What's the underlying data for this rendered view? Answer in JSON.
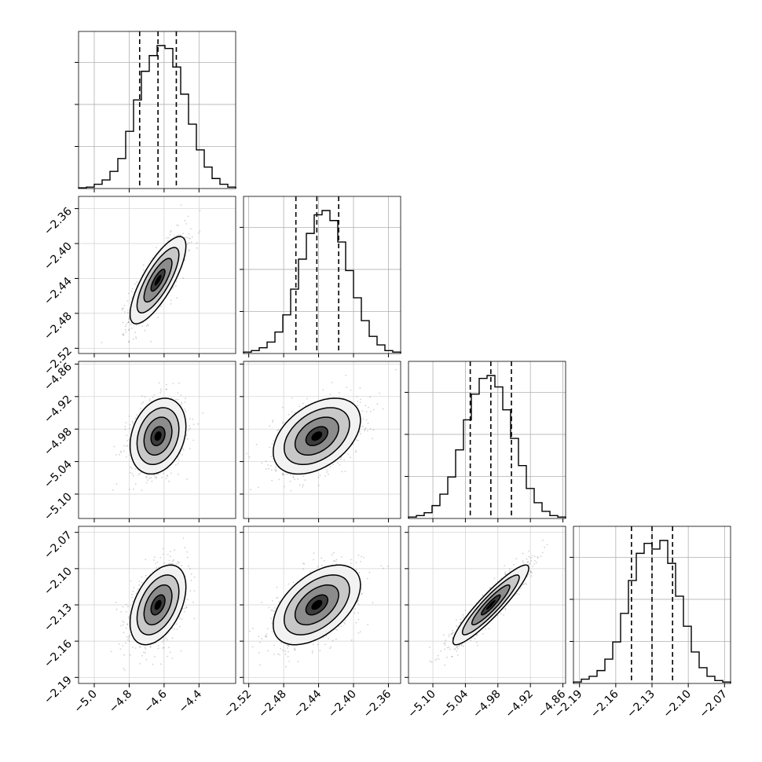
{
  "chart_data": {
    "type": "corner",
    "description_note": "",
    "parameters": [
      {
        "ticks": [
          -5.0,
          -4.8,
          -4.6,
          -4.4
        ],
        "tick_labels": [
          "−5.0",
          "−4.8",
          "−4.6",
          "−4.4"
        ],
        "range": [
          -5.09,
          -4.19
        ]
      },
      {
        "ticks": [
          -2.52,
          -2.48,
          -2.44,
          -2.4,
          -2.36
        ],
        "tick_labels": [
          "−2.52",
          "−2.48",
          "−2.44",
          "−2.40",
          "−2.36"
        ],
        "range": [
          -2.526,
          -2.346
        ]
      },
      {
        "ticks": [
          -5.1,
          -5.04,
          -4.98,
          -4.92,
          -4.86
        ],
        "tick_labels": [
          "−5.10",
          "−5.04",
          "−4.98",
          "−4.92",
          "−4.86"
        ],
        "range": [
          -5.145,
          -4.855
        ]
      },
      {
        "ticks": [
          -2.19,
          -2.16,
          -2.13,
          -2.1,
          -2.07
        ],
        "tick_labels": [
          "−2.19",
          "−2.16",
          "−2.13",
          "−2.10",
          "−2.07"
        ],
        "range": [
          -2.195,
          -2.065
        ]
      }
    ],
    "marginals": [
      {
        "bin_edges_range": [
          -5.09,
          -4.19
        ],
        "counts": [
          0.005,
          0.01,
          0.03,
          0.06,
          0.12,
          0.21,
          0.4,
          0.62,
          0.82,
          0.93,
          1.0,
          0.98,
          0.85,
          0.66,
          0.45,
          0.27,
          0.15,
          0.07,
          0.03,
          0.01
        ],
        "quantiles": [
          -4.74,
          -4.635,
          -4.53
        ]
      },
      {
        "bin_edges_range": [
          -2.526,
          -2.346
        ],
        "counts": [
          0.01,
          0.02,
          0.04,
          0.08,
          0.15,
          0.27,
          0.45,
          0.66,
          0.84,
          0.97,
          1.0,
          0.93,
          0.78,
          0.58,
          0.39,
          0.23,
          0.12,
          0.06,
          0.02,
          0.01
        ],
        "quantiles": [
          -2.466,
          -2.442,
          -2.417
        ]
      },
      {
        "bin_edges_range": [
          -5.145,
          -4.855
        ],
        "counts": [
          0.01,
          0.02,
          0.04,
          0.09,
          0.17,
          0.29,
          0.48,
          0.69,
          0.87,
          0.98,
          1.0,
          0.92,
          0.76,
          0.56,
          0.37,
          0.21,
          0.11,
          0.05,
          0.02,
          0.01
        ],
        "quantiles": [
          -5.031,
          -4.993,
          -4.955
        ]
      },
      {
        "bin_edges_range": [
          -2.195,
          -2.065
        ],
        "counts": [
          0.01,
          0.03,
          0.05,
          0.09,
          0.17,
          0.29,
          0.49,
          0.72,
          0.91,
          0.98,
          0.94,
          1.0,
          0.84,
          0.61,
          0.4,
          0.22,
          0.11,
          0.05,
          0.02,
          0.01
        ],
        "quantiles": [
          -2.147,
          -2.13,
          -2.113
        ]
      }
    ],
    "pairs": [
      {
        "x": 0,
        "y": 1,
        "mean": [
          -4.635,
          -2.442
        ],
        "sd": [
          0.08,
          0.025
        ],
        "corr": 0.78
      },
      {
        "x": 0,
        "y": 2,
        "mean": [
          -4.635,
          -4.993
        ],
        "sd": [
          0.08,
          0.035
        ],
        "corr": 0.25
      },
      {
        "x": 1,
        "y": 2,
        "mean": [
          -2.442,
          -4.993
        ],
        "sd": [
          0.025,
          0.035
        ],
        "corr": 0.42
      },
      {
        "x": 0,
        "y": 3,
        "mean": [
          -4.635,
          -2.13
        ],
        "sd": [
          0.08,
          0.0165
        ],
        "corr": 0.45
      },
      {
        "x": 1,
        "y": 3,
        "mean": [
          -2.442,
          -2.13
        ],
        "sd": [
          0.025,
          0.0165
        ],
        "corr": 0.5
      },
      {
        "x": 2,
        "y": 3,
        "mean": [
          -4.993,
          -2.13
        ],
        "sd": [
          0.035,
          0.0165
        ],
        "corr": 0.92
      }
    ],
    "contour_levels_sigma": [
      0.5,
      1.0,
      1.5,
      2.0
    ],
    "show_grid": true
  }
}
